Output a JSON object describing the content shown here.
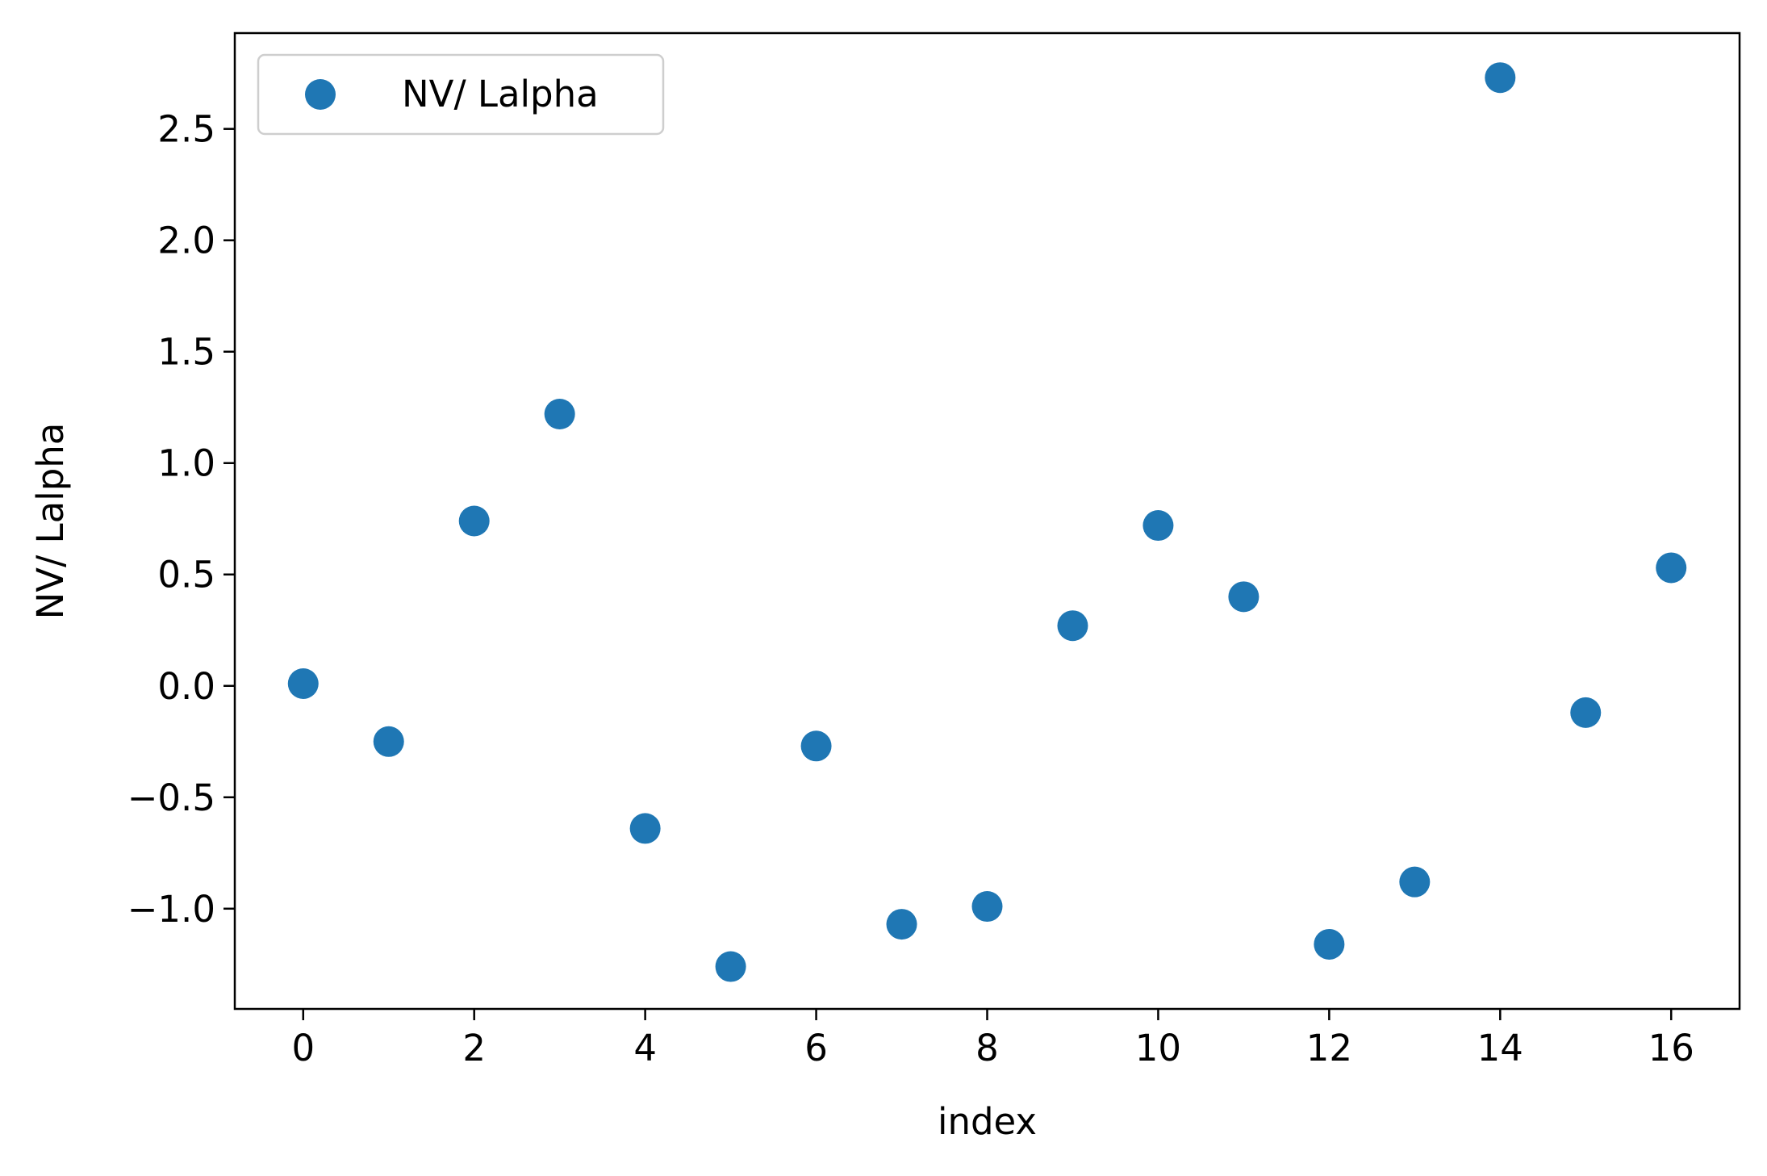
{
  "chart_data": {
    "type": "scatter",
    "title": "",
    "xlabel": "index",
    "ylabel": "NV/ Lalpha",
    "xlim": [
      -0.8,
      16.8
    ],
    "ylim": [
      -1.45,
      2.93
    ],
    "xticks": [
      0,
      2,
      4,
      6,
      8,
      10,
      12,
      14,
      16
    ],
    "yticks": [
      -1.0,
      -0.5,
      0.0,
      0.5,
      1.0,
      1.5,
      2.0,
      2.5
    ],
    "xtick_labels": [
      "0",
      "2",
      "4",
      "6",
      "8",
      "10",
      "12",
      "14",
      "16"
    ],
    "ytick_labels": [
      "−1.0",
      "−0.5",
      "0.0",
      "0.5",
      "1.0",
      "1.5",
      "2.0",
      "2.5"
    ],
    "grid": false,
    "legend_position": "top-left",
    "series": [
      {
        "name": "NV/ Lalpha",
        "color": "#1f77b4",
        "x": [
          0,
          1,
          2,
          3,
          4,
          5,
          6,
          7,
          8,
          9,
          10,
          11,
          12,
          13,
          14,
          15,
          16
        ],
        "y": [
          0.01,
          -0.25,
          0.74,
          1.22,
          -0.64,
          -1.26,
          -0.27,
          -1.07,
          -0.99,
          0.27,
          0.72,
          0.4,
          -1.16,
          -0.88,
          2.73,
          -0.12,
          0.53
        ]
      }
    ]
  }
}
